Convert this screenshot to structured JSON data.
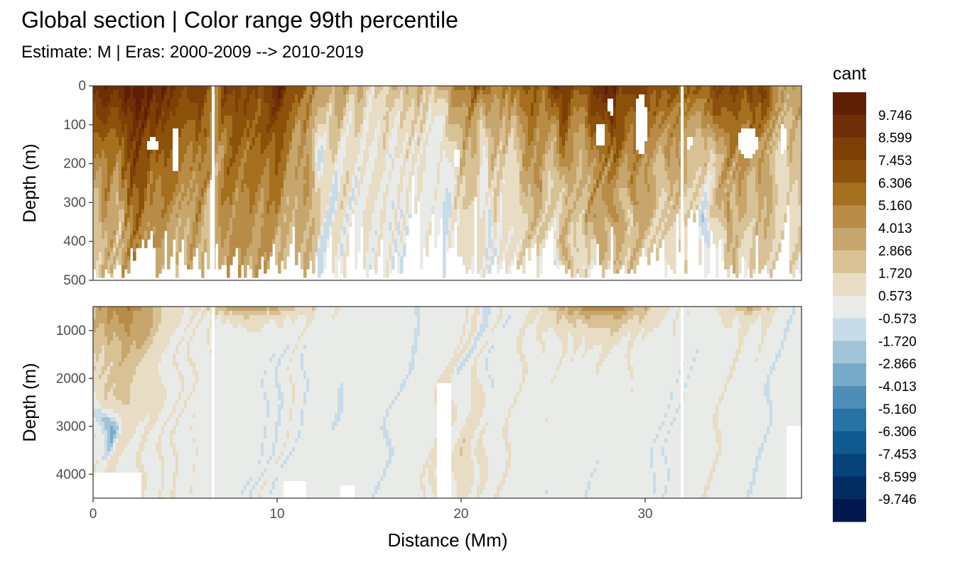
{
  "chart_data": {
    "type": "heatmap",
    "title": "Global section | Color range 99th percentile",
    "subtitle": "Estimate: M  | Eras: 2000-2009 --> 2010-2019",
    "xlabel": "Distance (Mm)",
    "ylabel": "Depth (m)",
    "xlim": [
      0,
      38.5
    ],
    "x_ticks": [
      0,
      10,
      20,
      30
    ],
    "panels": [
      {
        "name": "upper",
        "ylim": [
          0,
          500
        ],
        "y_ticks": [
          0,
          100,
          200,
          300,
          400,
          500
        ]
      },
      {
        "name": "lower",
        "ylim": [
          500,
          4500
        ],
        "y_ticks": [
          1000,
          2000,
          3000,
          4000
        ]
      }
    ],
    "legend": {
      "title": "cant",
      "position": "right",
      "labels": [
        "9.746",
        "8.599",
        "7.453",
        "6.306",
        "5.160",
        "4.013",
        "2.866",
        "1.720",
        "0.573",
        "-0.573",
        "-1.720",
        "-2.866",
        "-4.013",
        "-5.160",
        "-6.306",
        "-7.453",
        "-8.599",
        "-9.746"
      ],
      "colors": [
        "#5f1f05",
        "#6f2e05",
        "#7e3f07",
        "#8c510a",
        "#a4701f",
        "#b88c47",
        "#c7a66d",
        "#d8c195",
        "#e8dcc4",
        "#e9ebe8",
        "#c8dbe8",
        "#a1c4d9",
        "#77aac8",
        "#4d8eb8",
        "#2773a5",
        "#0f5a91",
        "#06427a",
        "#032c63",
        "#01174d"
      ]
    },
    "grid": false
  }
}
